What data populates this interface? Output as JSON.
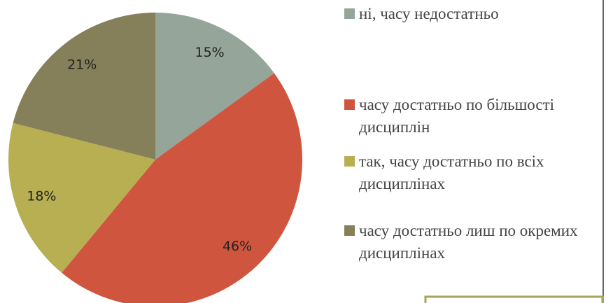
{
  "chart_data": {
    "type": "pie",
    "categories": [
      "ні, часу недостатньо",
      "часу достатньо по більшості дисциплін",
      "так, часу достатньо по всіх дисциплінах",
      "часу достатньо лиш по окремих дисциплінах"
    ],
    "values": [
      15,
      46,
      18,
      21
    ],
    "value_labels": [
      "15%",
      "46%",
      "18%",
      "21%"
    ],
    "colors": [
      "#95a59a",
      "#d0553f",
      "#b8ae52",
      "#857f5a"
    ]
  }
}
